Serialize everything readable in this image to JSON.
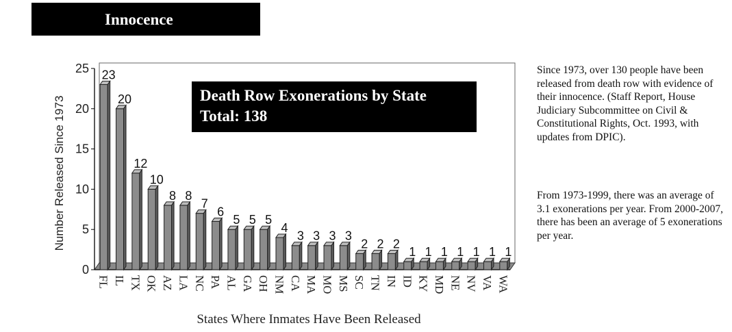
{
  "header": {
    "title": "Innocence"
  },
  "sidebar": {
    "paragraph1": "Since 1973, over 130 people have been released from death row with evidence of their innocence. (Staff Report, House Judiciary Subcommittee on Civil & Constitutional Rights, Oct. 1993, with updates from DPIC).",
    "paragraph2": "From 1973-1999, there was an average of 3.1 exonerations per year. From 2000-2007, there has been an average of 5 exonerations per year."
  },
  "chart_data": {
    "type": "bar",
    "title": "Death Row Exonerations by State",
    "subtitle": "Total: 138",
    "xlabel": "States Where Inmates Have Been Released",
    "ylabel": "Number Released Since 1973",
    "ylim": [
      0,
      25
    ],
    "yticks": [
      0,
      5,
      10,
      15,
      20,
      25
    ],
    "grid": false,
    "legend": "none",
    "bar_color": "#8c8c8c",
    "categories": [
      "FL",
      "IL",
      "TX",
      "OK",
      "AZ",
      "LA",
      "NC",
      "PA",
      "AL",
      "GA",
      "OH",
      "NM",
      "CA",
      "MA",
      "MO",
      "MS",
      "SC",
      "TN",
      "IN",
      "ID",
      "KY",
      "MD",
      "NE",
      "NV",
      "VA",
      "WA"
    ],
    "values": [
      23,
      20,
      12,
      10,
      8,
      8,
      7,
      6,
      5,
      5,
      5,
      4,
      3,
      3,
      3,
      3,
      2,
      2,
      2,
      1,
      1,
      1,
      1,
      1,
      1,
      1
    ]
  }
}
